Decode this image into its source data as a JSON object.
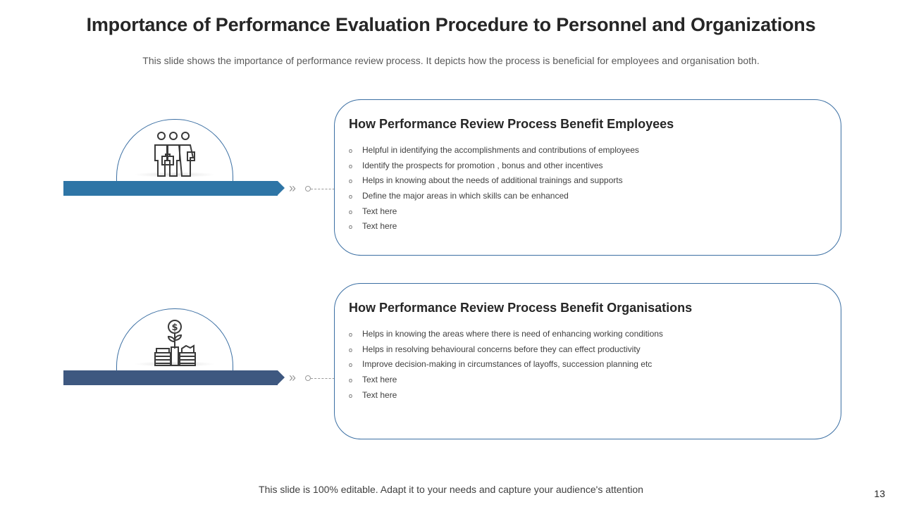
{
  "title": "Importance of Performance Evaluation Procedure to Personnel and Organizations",
  "subtitle": "This slide shows the importance of performance review process. It depicts how the process is beneficial for employees and organisation both.",
  "colors": {
    "bar_employees": "#2e75a6",
    "bar_organisations": "#3e5880",
    "card_border": "#3b6fa3"
  },
  "sections": [
    {
      "icon": "people-group-icon",
      "heading": "How Performance Review Process Benefit Employees",
      "items": [
        "Helpful in identifying the accomplishments and contributions of employees",
        "Identify the prospects for promotion , bonus and other incentives",
        "Helps in knowing about the needs of additional trainings and supports",
        "Define the major areas in which skills can be enhanced",
        "Text here",
        "Text here"
      ]
    },
    {
      "icon": "money-growth-icon",
      "heading": "How Performance Review Process Benefit Organisations",
      "items": [
        "Helps in knowing the areas where there is need of enhancing working conditions",
        "Helps in resolving behavioural concerns before they can effect productivity",
        "Improve decision-making in circumstances of layoffs, succession planning etc",
        "Text here",
        "Text here"
      ]
    }
  ],
  "bullet_glyph": "o",
  "chevron_glyph": "»",
  "footer": "This slide is 100% editable. Adapt it to your needs and capture your audience's attention",
  "page_number": "13"
}
